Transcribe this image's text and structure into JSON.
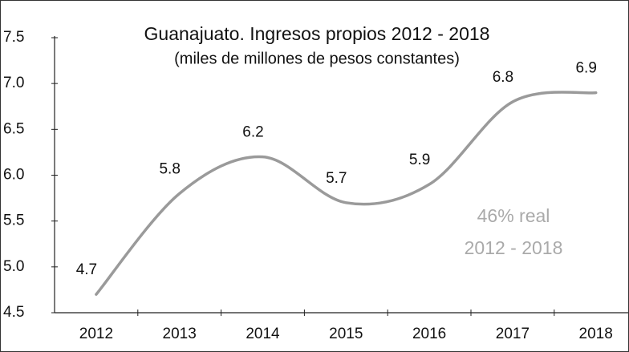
{
  "chart_data": {
    "type": "line",
    "title": "Guanajuato. Ingresos propios 2012 - 2018",
    "subtitle": "(miles de millones de pesos constantes)",
    "categories": [
      "2012",
      "2013",
      "2014",
      "2015",
      "2016",
      "2017",
      "2018"
    ],
    "values": [
      4.7,
      5.8,
      6.2,
      5.7,
      5.9,
      6.8,
      6.9
    ],
    "value_labels": [
      "4.7",
      "5.8",
      "6.2",
      "5.7",
      "5.9",
      "6.8",
      "6.9"
    ],
    "color": "#9a9a9a",
    "ylim": [
      4.5,
      7.5
    ],
    "yticks": [
      {
        "value": 4.5,
        "label": "4.5"
      },
      {
        "value": 5,
        "label": "5.0"
      },
      {
        "value": 5.5,
        "label": "5.5"
      },
      {
        "value": 6,
        "label": "6.0"
      },
      {
        "value": 6.5,
        "label": "6.5"
      },
      {
        "value": 7,
        "label": "7.0"
      },
      {
        "value": 7.5,
        "label": "7.5"
      }
    ],
    "annotations": [
      "46% real",
      "2012 - 2018"
    ]
  }
}
